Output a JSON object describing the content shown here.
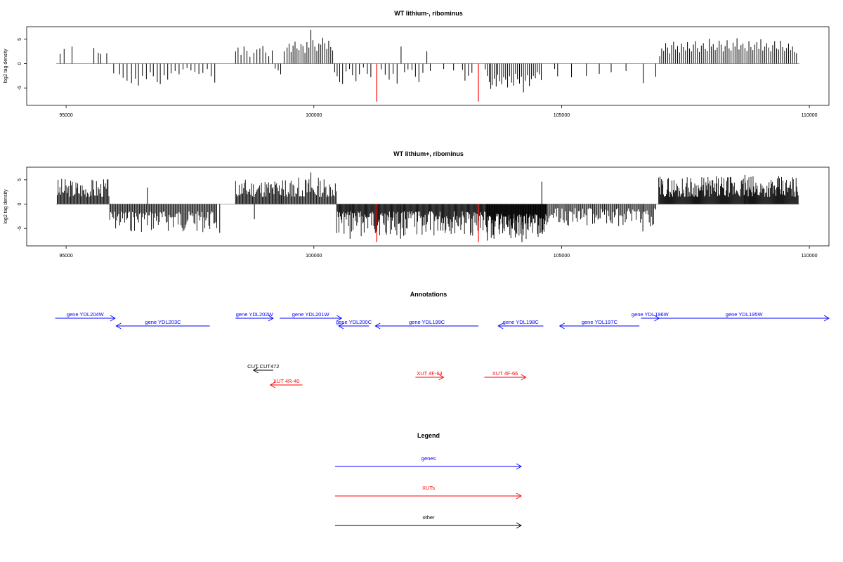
{
  "chart_data": [
    {
      "type": "bar",
      "title": "WT lithium-, ribominus",
      "ylabel": "log2 tag density",
      "xlim": [
        94800,
        109800
      ],
      "ylim": [
        -8,
        7
      ],
      "xticks": [
        95000,
        100000,
        105000,
        110000
      ],
      "yticks": [
        -5,
        0,
        5
      ],
      "grid": false,
      "highlight_bars": [
        {
          "x": 101270,
          "value": -7.8,
          "color": "#ff0000"
        },
        {
          "x": 103320,
          "value": -7.8,
          "color": "#ff0000"
        }
      ],
      "bars": [
        [
          94880,
          2
        ],
        [
          94960,
          3
        ],
        [
          95120,
          3.5
        ],
        [
          95560,
          3.2
        ],
        [
          95650,
          2.2
        ],
        [
          95700,
          2
        ],
        [
          95820,
          2.1
        ],
        [
          95960,
          -2
        ],
        [
          96080,
          -2.2
        ],
        [
          96150,
          -2.9
        ],
        [
          96230,
          -3.5
        ],
        [
          96320,
          -4
        ],
        [
          96400,
          -3.1
        ],
        [
          96460,
          -4.5
        ],
        [
          96540,
          -2.5
        ],
        [
          96620,
          -3.2
        ],
        [
          96700,
          -1.8
        ],
        [
          96760,
          -2.6
        ],
        [
          96840,
          -3.8
        ],
        [
          96900,
          -4.2
        ],
        [
          96980,
          -2.4
        ],
        [
          97050,
          -3.3
        ],
        [
          97120,
          -2
        ],
        [
          97200,
          -1.5
        ],
        [
          97280,
          -2.2
        ],
        [
          97360,
          -1.2
        ],
        [
          97440,
          -0.9
        ],
        [
          97520,
          -1.4
        ],
        [
          97600,
          -1.7
        ],
        [
          97680,
          -2.1
        ],
        [
          97760,
          -1.9
        ],
        [
          97850,
          -1.1
        ],
        [
          97930,
          -2.6
        ],
        [
          98000,
          -3.9
        ],
        [
          98420,
          2.5
        ],
        [
          98470,
          3.3
        ],
        [
          98530,
          1.8
        ],
        [
          98590,
          3.5
        ],
        [
          98650,
          2.6
        ],
        [
          98710,
          1.4
        ],
        [
          98790,
          2.2
        ],
        [
          98850,
          2.9
        ],
        [
          98910,
          3.1
        ],
        [
          98970,
          3.6
        ],
        [
          99030,
          2.3
        ],
        [
          99090,
          1.5
        ],
        [
          99160,
          2.7
        ],
        [
          99220,
          -1
        ],
        [
          99280,
          -1.4
        ],
        [
          99330,
          -2.2
        ],
        [
          99400,
          2.5
        ],
        [
          99460,
          3.3
        ],
        [
          99500,
          4.1
        ],
        [
          99540,
          2.4
        ],
        [
          99580,
          3.7
        ],
        [
          99620,
          4.5
        ],
        [
          99660,
          3.1
        ],
        [
          99700,
          2.8
        ],
        [
          99740,
          4
        ],
        [
          99780,
          3.6
        ],
        [
          99820,
          2.2
        ],
        [
          99860,
          4.4
        ],
        [
          99900,
          3.3
        ],
        [
          99940,
          6.9
        ],
        [
          99980,
          4.8
        ],
        [
          100020,
          3.5
        ],
        [
          100060,
          2.6
        ],
        [
          100100,
          4.1
        ],
        [
          100140,
          3.9
        ],
        [
          100180,
          5.3
        ],
        [
          100220,
          4.2
        ],
        [
          100260,
          3
        ],
        [
          100300,
          4.7
        ],
        [
          100340,
          3.4
        ],
        [
          100380,
          2.7
        ],
        [
          100420,
          -1.8
        ],
        [
          100470,
          -2.6
        ],
        [
          100520,
          -3.8
        ],
        [
          100580,
          -4.2
        ],
        [
          100650,
          -1.6
        ],
        [
          100720,
          -1.1
        ],
        [
          100780,
          -2.4
        ],
        [
          100850,
          -3.6
        ],
        [
          100920,
          -2.2
        ],
        [
          101000,
          -0.8
        ],
        [
          101080,
          -2.1
        ],
        [
          101150,
          -2.8
        ],
        [
          101360,
          -1.2
        ],
        [
          101440,
          -2.3
        ],
        [
          101520,
          -3.3
        ],
        [
          101600,
          -2.1
        ],
        [
          101680,
          -4.1
        ],
        [
          101760,
          3.5
        ],
        [
          101830,
          -1.8
        ],
        [
          101900,
          -1.2
        ],
        [
          101980,
          -1.3
        ],
        [
          102050,
          -2.7
        ],
        [
          102120,
          -3.8
        ],
        [
          102200,
          -1.9
        ],
        [
          102280,
          2.5
        ],
        [
          102350,
          -1.5
        ],
        [
          102620,
          -1.1
        ],
        [
          102820,
          -1.4
        ],
        [
          103000,
          -1.3
        ],
        [
          103050,
          -3.5
        ],
        [
          103120,
          -2.5
        ],
        [
          103190,
          -1.9
        ],
        [
          103460,
          -1.2
        ],
        [
          103500,
          -2.5
        ],
        [
          103540,
          -3.8
        ],
        [
          103570,
          -5.2
        ],
        [
          103600,
          -4.4
        ],
        [
          103640,
          -3.1
        ],
        [
          103680,
          -4.7
        ],
        [
          103710,
          -2.3
        ],
        [
          103750,
          -3.6
        ],
        [
          103790,
          -4.2
        ],
        [
          103830,
          -2.8
        ],
        [
          103870,
          -3.3
        ],
        [
          103910,
          -4.9
        ],
        [
          103950,
          -2.6
        ],
        [
          103990,
          -3.9
        ],
        [
          104030,
          -4.5
        ],
        [
          104070,
          -2.1
        ],
        [
          104110,
          -3.2
        ],
        [
          104150,
          -4.1
        ],
        [
          104190,
          -2.7
        ],
        [
          104230,
          -5.9
        ],
        [
          104270,
          -3.5
        ],
        [
          104310,
          -2.4
        ],
        [
          104350,
          -4.6
        ],
        [
          104390,
          -3.2
        ],
        [
          104430,
          -2.5
        ],
        [
          104470,
          -3
        ],
        [
          104510,
          -1.8
        ],
        [
          104550,
          -2.2
        ],
        [
          104590,
          -3.4
        ],
        [
          104860,
          -1.1
        ],
        [
          104920,
          -2.6
        ],
        [
          105200,
          -2.8
        ],
        [
          105500,
          -2.5
        ],
        [
          105760,
          -2.1
        ],
        [
          106000,
          -1.8
        ],
        [
          106300,
          -1.5
        ],
        [
          106650,
          -4
        ],
        [
          106900,
          -2.7
        ],
        [
          106980,
          1.5
        ],
        [
          107020,
          3.1
        ],
        [
          107060,
          2.6
        ],
        [
          107100,
          4.2
        ],
        [
          107140,
          3.3
        ],
        [
          107180,
          2.1
        ],
        [
          107220,
          3.8
        ],
        [
          107260,
          4.5
        ],
        [
          107300,
          2.9
        ],
        [
          107340,
          3.6
        ],
        [
          107380,
          2.3
        ],
        [
          107420,
          4.1
        ],
        [
          107460,
          3.4
        ],
        [
          107500,
          2.7
        ],
        [
          107540,
          4.4
        ],
        [
          107580,
          3.1
        ],
        [
          107620,
          2.5
        ],
        [
          107660,
          3.9
        ],
        [
          107700,
          4.6
        ],
        [
          107740,
          3.2
        ],
        [
          107780,
          2.4
        ],
        [
          107820,
          3.7
        ],
        [
          107860,
          4.2
        ],
        [
          107900,
          3
        ],
        [
          107940,
          2.6
        ],
        [
          107980,
          5.1
        ],
        [
          108020,
          3.5
        ],
        [
          108060,
          4
        ],
        [
          108100,
          2.8
        ],
        [
          108140,
          3.3
        ],
        [
          108180,
          4.7
        ],
        [
          108220,
          3.9
        ],
        [
          108260,
          2.5
        ],
        [
          108300,
          3.6
        ],
        [
          108340,
          4.8
        ],
        [
          108380,
          3.1
        ],
        [
          108420,
          2.7
        ],
        [
          108460,
          4.3
        ],
        [
          108500,
          3.5
        ],
        [
          108540,
          5.2
        ],
        [
          108580,
          2.9
        ],
        [
          108620,
          3.8
        ],
        [
          108660,
          4.1
        ],
        [
          108700,
          3.2
        ],
        [
          108740,
          2.6
        ],
        [
          108780,
          4.6
        ],
        [
          108820,
          3.4
        ],
        [
          108860,
          2.8
        ],
        [
          108900,
          3.9
        ],
        [
          108940,
          4.4
        ],
        [
          108980,
          3
        ],
        [
          109020,
          5
        ],
        [
          109060,
          2.7
        ],
        [
          109100,
          3.5
        ],
        [
          109140,
          4.2
        ],
        [
          109180,
          3.3
        ],
        [
          109220,
          2.5
        ],
        [
          109260,
          3.8
        ],
        [
          109300,
          4.6
        ],
        [
          109340,
          3.1
        ],
        [
          109380,
          2.9
        ],
        [
          109420,
          4.7
        ],
        [
          109460,
          3.4
        ],
        [
          109500,
          2.6
        ],
        [
          109540,
          3.2
        ],
        [
          109580,
          4.1
        ],
        [
          109620,
          2.8
        ],
        [
          109660,
          3.5
        ],
        [
          109700,
          2.4
        ],
        [
          109740,
          2.1
        ]
      ]
    },
    {
      "type": "bar",
      "title": "WT lithium+, ribominus",
      "ylabel": "log2 tag density",
      "xlim": [
        94800,
        109800
      ],
      "ylim": [
        -8,
        7
      ],
      "xticks": [
        95000,
        100000,
        105000,
        110000
      ],
      "yticks": [
        -5,
        0,
        5
      ],
      "grid": false,
      "highlight_bars": [
        {
          "x": 101270,
          "value": -7.8,
          "color": "#ff0000"
        },
        {
          "x": 103320,
          "value": -7.8,
          "color": "#ff0000"
        }
      ],
      "segments": [
        {
          "from": 94820,
          "to": 95880,
          "sign": 1,
          "min": 1.5,
          "max": 5.4,
          "step": 18,
          "seed": 3
        },
        {
          "from": 95880,
          "to": 98050,
          "sign": -1,
          "min": 1.5,
          "max": 5.8,
          "step": 20,
          "seed": 7
        },
        {
          "from": 98420,
          "to": 99350,
          "sign": 1,
          "min": 1.5,
          "max": 5.3,
          "step": 18,
          "seed": 11
        },
        {
          "from": 99350,
          "to": 100460,
          "sign": 1,
          "min": 1.5,
          "max": 5.6,
          "step": 19,
          "seed": 13
        },
        {
          "from": 100460,
          "to": 103470,
          "sign": -1,
          "min": 1.5,
          "max": 6.6,
          "step": 15,
          "seed": 17
        },
        {
          "from": 103470,
          "to": 104700,
          "sign": -1,
          "min": 2,
          "max": 7.2,
          "step": 11,
          "seed": 19
        },
        {
          "from": 104700,
          "to": 106900,
          "sign": -1,
          "min": 0.8,
          "max": 4.6,
          "step": 22,
          "seed": 23
        },
        {
          "from": 106960,
          "to": 109780,
          "sign": 1,
          "min": 1.5,
          "max": 5.8,
          "step": 14,
          "seed": 29
        }
      ],
      "bars": [
        [
          96640,
          3.4
        ],
        [
          98800,
          -3.1
        ],
        [
          99940,
          6.5
        ],
        [
          100730,
          -7.1
        ],
        [
          101750,
          -7.1
        ],
        [
          103500,
          -7.5
        ],
        [
          104600,
          4.6
        ],
        [
          104200,
          -7.8
        ],
        [
          106640,
          -5.6
        ],
        [
          108700,
          6
        ],
        [
          98100,
          -5.9
        ]
      ]
    }
  ],
  "annotations": {
    "title": "Annotations",
    "xlim": [
      94800,
      109800
    ],
    "items": [
      {
        "label": "gene YDL204W",
        "start": 94780,
        "end": 95990,
        "dir": 1,
        "row": 0,
        "kind": "gene"
      },
      {
        "label": "gene YDL203C",
        "start": 96010,
        "end": 97900,
        "dir": -1,
        "row": 1,
        "kind": "gene"
      },
      {
        "label": "gene YDL202W",
        "start": 98420,
        "end": 99180,
        "dir": 1,
        "row": 0,
        "kind": "gene"
      },
      {
        "label": "gene YDL201W",
        "start": 99310,
        "end": 100560,
        "dir": 1,
        "row": 0,
        "kind": "gene"
      },
      {
        "label": "gene YDL200C",
        "start": 100500,
        "end": 101110,
        "dir": -1,
        "row": 1,
        "kind": "gene"
      },
      {
        "label": "gene YDL199C",
        "start": 101240,
        "end": 103320,
        "dir": -1,
        "row": 1,
        "kind": "gene"
      },
      {
        "label": "gene YDL198C",
        "start": 103720,
        "end": 104630,
        "dir": -1,
        "row": 1,
        "kind": "gene"
      },
      {
        "label": "gene YDL197C",
        "start": 104960,
        "end": 106570,
        "dir": -1,
        "row": 1,
        "kind": "gene"
      },
      {
        "label": "gene YDL196W",
        "start": 106600,
        "end": 106970,
        "dir": 1,
        "row": 0,
        "kind": "gene"
      },
      {
        "label": "gene YDL195W",
        "start": 106970,
        "end": 110400,
        "dir": 1,
        "row": 0,
        "kind": "gene"
      },
      {
        "label": "CUT CUT472",
        "start": 98780,
        "end": 99180,
        "dir": -1,
        "row": 4,
        "kind": "other"
      },
      {
        "label": "XUT 4R-40",
        "start": 99120,
        "end": 99770,
        "dir": -1,
        "row": 6,
        "kind": "xut"
      },
      {
        "label": "XUT 4F-63",
        "start": 102050,
        "end": 102620,
        "dir": 1,
        "row": 5,
        "kind": "xut"
      },
      {
        "label": "XUT 4F-66",
        "start": 103440,
        "end": 104280,
        "dir": 1,
        "row": 5,
        "kind": "xut"
      }
    ]
  },
  "legend": {
    "title": "Legend",
    "items": [
      {
        "label": "genes",
        "color": "#0000ff"
      },
      {
        "label": "XUTs",
        "color": "#ff0000"
      },
      {
        "label": "other",
        "color": "#000000"
      }
    ]
  },
  "colors": {
    "gene": "#0000ff",
    "xut": "#ff0000",
    "other": "#000000"
  }
}
